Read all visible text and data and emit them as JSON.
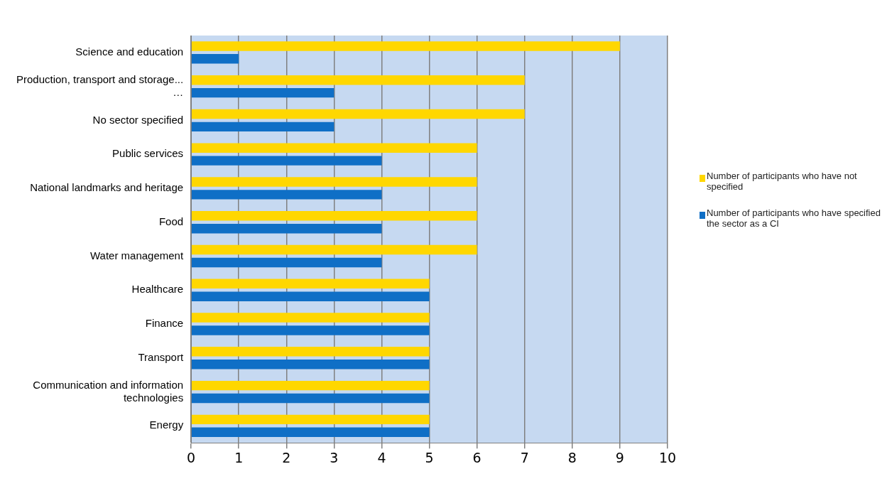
{
  "chart_data": {
    "type": "bar",
    "orientation": "horizontal",
    "categories": [
      "Science and education",
      "Production, transport and storage... …",
      "No sector specified",
      "Public services",
      "National landmarks and heritage",
      "Food",
      "Water management",
      "Healthcare",
      "Finance",
      "Transport",
      "Communication and information technologies",
      "Energy"
    ],
    "series": [
      {
        "name": "Number of participants who have not specified",
        "color": "#ffd700",
        "values": [
          9,
          7,
          7,
          6,
          6,
          6,
          6,
          5,
          5,
          5,
          5,
          5
        ]
      },
      {
        "name": "Number of participants who have specified the sector as a CI",
        "color": "#0f6fc6",
        "values": [
          1,
          3,
          3,
          4,
          4,
          4,
          4,
          5,
          5,
          5,
          5,
          5
        ]
      }
    ],
    "xlim": [
      0,
      10
    ],
    "xticks": [
      0,
      1,
      2,
      3,
      4,
      5,
      6,
      7,
      8,
      9,
      10
    ],
    "grid": "x",
    "legend": "right"
  }
}
